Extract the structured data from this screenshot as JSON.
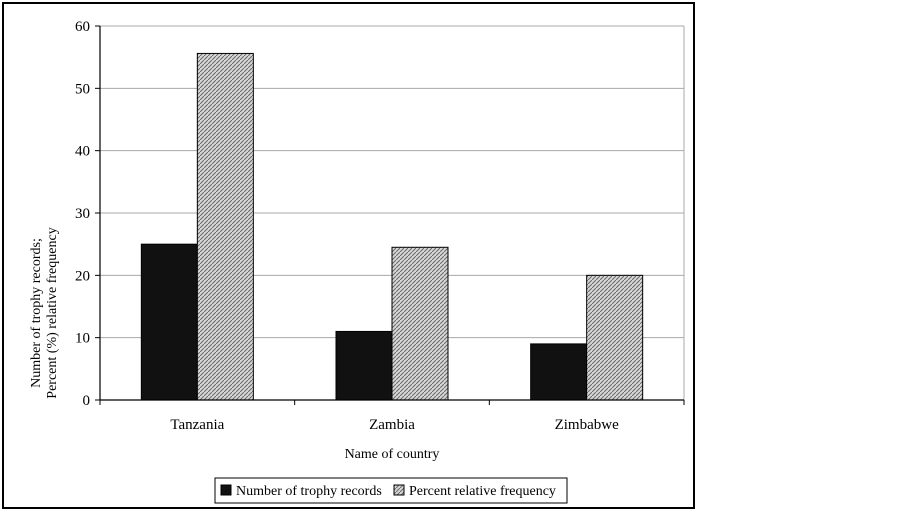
{
  "chart_data": {
    "type": "bar",
    "categories": [
      "Tanzania",
      "Zambia",
      "Zimbabwe"
    ],
    "series": [
      {
        "name": "Number of trophy records",
        "values": [
          25,
          11,
          9
        ],
        "color": "#111111",
        "fill": "solid"
      },
      {
        "name": "Percent relative frequency",
        "values": [
          55.6,
          24.5,
          20
        ],
        "color": "#b0b0b0",
        "fill": "hatched"
      }
    ],
    "xlabel": "Name of country",
    "ylabel_lines": [
      "Number of trophy records;",
      "Percent (%) relative frequency"
    ],
    "ylim": [
      0,
      60
    ],
    "yticks": [
      0,
      10,
      20,
      30,
      40,
      50,
      60
    ],
    "grid": true,
    "legend": "bottom"
  }
}
